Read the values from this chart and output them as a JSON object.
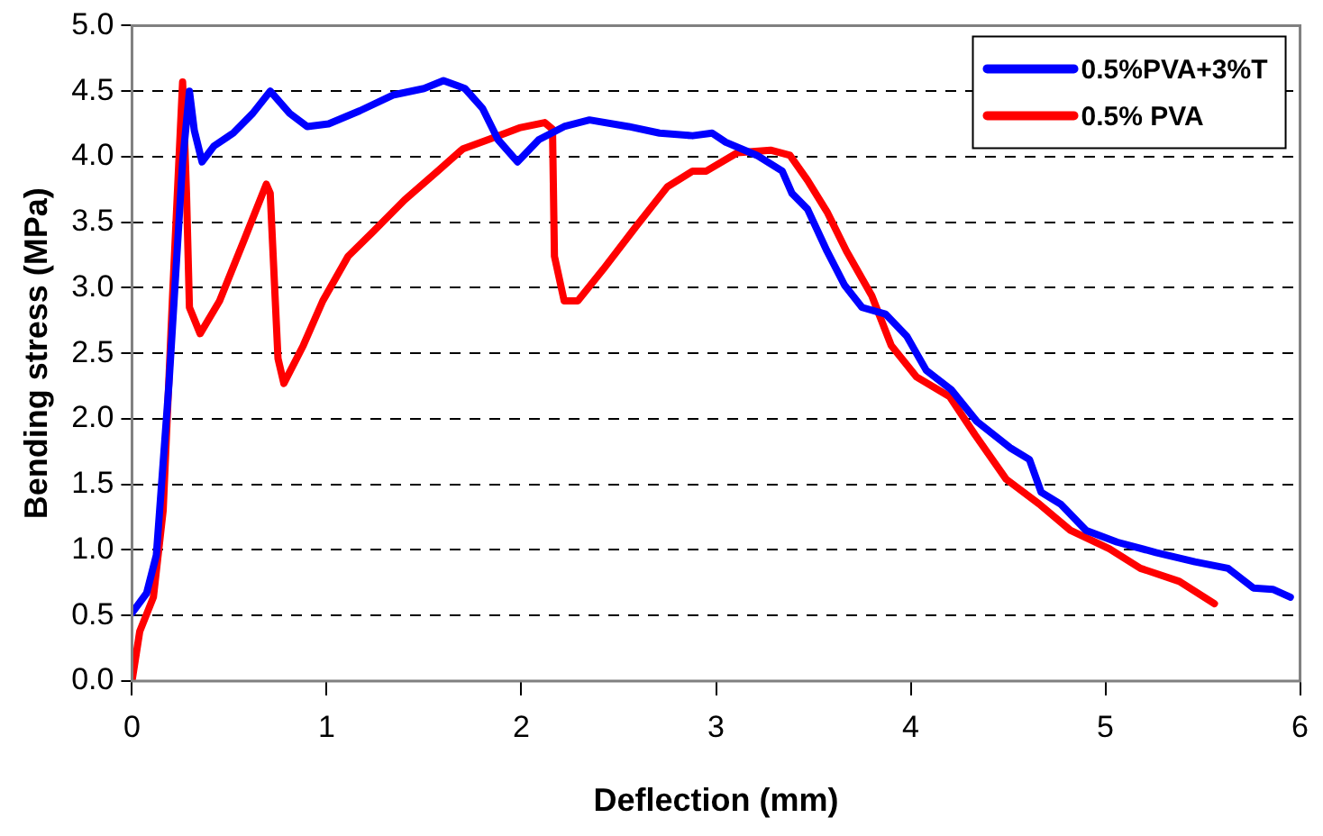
{
  "chart_data": {
    "type": "line",
    "xlabel": "Deflection (mm)",
    "ylabel": "Bending stress (MPa)",
    "xlim": [
      0,
      6
    ],
    "xticks": [
      0,
      1,
      2,
      3,
      4,
      5,
      6
    ],
    "ylim": [
      0,
      5
    ],
    "yticks": [
      {
        "value": 0,
        "label": "0.0"
      },
      {
        "value": 0.5,
        "label": "0.5"
      },
      {
        "value": 1,
        "label": "1.0"
      },
      {
        "value": 1.5,
        "label": "1.5"
      },
      {
        "value": 2,
        "label": "2.0"
      },
      {
        "value": 2.5,
        "label": "2.5"
      },
      {
        "value": 3,
        "label": "3.0"
      },
      {
        "value": 3.5,
        "label": "3.5"
      },
      {
        "value": 4,
        "label": "4.0"
      },
      {
        "value": 4.5,
        "label": "4.5"
      },
      {
        "value": 5,
        "label": "5.0"
      }
    ],
    "grid": "y",
    "legend": "top right",
    "marker": "none",
    "line_style": "solid",
    "series": [
      {
        "name": "0.5%PVA+3%T",
        "color": "#0000ff",
        "x": [
          0,
          0.075,
          0.125,
          0.19,
          0.26,
          0.295,
          0.32,
          0.36,
          0.42,
          0.52,
          0.62,
          0.71,
          0.81,
          0.9,
          1.01,
          1.17,
          1.34,
          1.5,
          1.6,
          1.71,
          1.8,
          1.88,
          1.98,
          2.09,
          2.22,
          2.35,
          2.55,
          2.71,
          2.88,
          2.98,
          3.05,
          3.21,
          3.34,
          3.39,
          3.47,
          3.57,
          3.66,
          3.75,
          3.87,
          3.98,
          4.08,
          4.21,
          4.34,
          4.51,
          4.61,
          4.67,
          4.77,
          4.9,
          5.06,
          5.26,
          5.46,
          5.63,
          5.76,
          5.86,
          5.95
        ],
        "values": [
          0.52,
          0.67,
          0.96,
          2.27,
          3.96,
          4.5,
          4.2,
          3.96,
          4.08,
          4.18,
          4.33,
          4.5,
          4.33,
          4.23,
          4.25,
          4.35,
          4.47,
          4.52,
          4.58,
          4.52,
          4.37,
          4.13,
          3.96,
          4.13,
          4.23,
          4.28,
          4.23,
          4.18,
          4.16,
          4.18,
          4.11,
          4.01,
          3.89,
          3.72,
          3.6,
          3.28,
          3.02,
          2.85,
          2.8,
          2.63,
          2.37,
          2.22,
          1.98,
          1.78,
          1.69,
          1.44,
          1.35,
          1.15,
          1.06,
          0.98,
          0.91,
          0.86,
          0.71,
          0.7,
          0.64
        ]
      },
      {
        "name": "0.5% PVA",
        "color": "#ff0000",
        "x": [
          0,
          0.04,
          0.11,
          0.16,
          0.21,
          0.26,
          0.28,
          0.295,
          0.35,
          0.45,
          0.58,
          0.69,
          0.71,
          0.75,
          0.78,
          0.88,
          0.98,
          1.11,
          1.24,
          1.4,
          1.57,
          1.7,
          1.83,
          1.99,
          2.12,
          2.16,
          2.17,
          2.22,
          2.29,
          2.42,
          2.58,
          2.75,
          2.88,
          2.95,
          3.11,
          3.28,
          3.38,
          3.47,
          3.57,
          3.67,
          3.8,
          3.9,
          4.03,
          4.2,
          4.33,
          4.49,
          4.66,
          4.82,
          5.02,
          5.18,
          5.38,
          5.56
        ],
        "values": [
          0,
          0.38,
          0.64,
          1.3,
          2.99,
          4.57,
          3.72,
          2.85,
          2.65,
          2.9,
          3.38,
          3.79,
          3.72,
          2.46,
          2.27,
          2.56,
          2.9,
          3.24,
          3.43,
          3.67,
          3.89,
          4.06,
          4.13,
          4.22,
          4.26,
          4.21,
          3.24,
          2.9,
          2.9,
          3.14,
          3.45,
          3.77,
          3.89,
          3.89,
          4.03,
          4.05,
          4.01,
          3.82,
          3.58,
          3.28,
          2.94,
          2.56,
          2.32,
          2.17,
          1.88,
          1.54,
          1.35,
          1.15,
          1.01,
          0.86,
          0.76,
          0.59
        ]
      }
    ]
  }
}
